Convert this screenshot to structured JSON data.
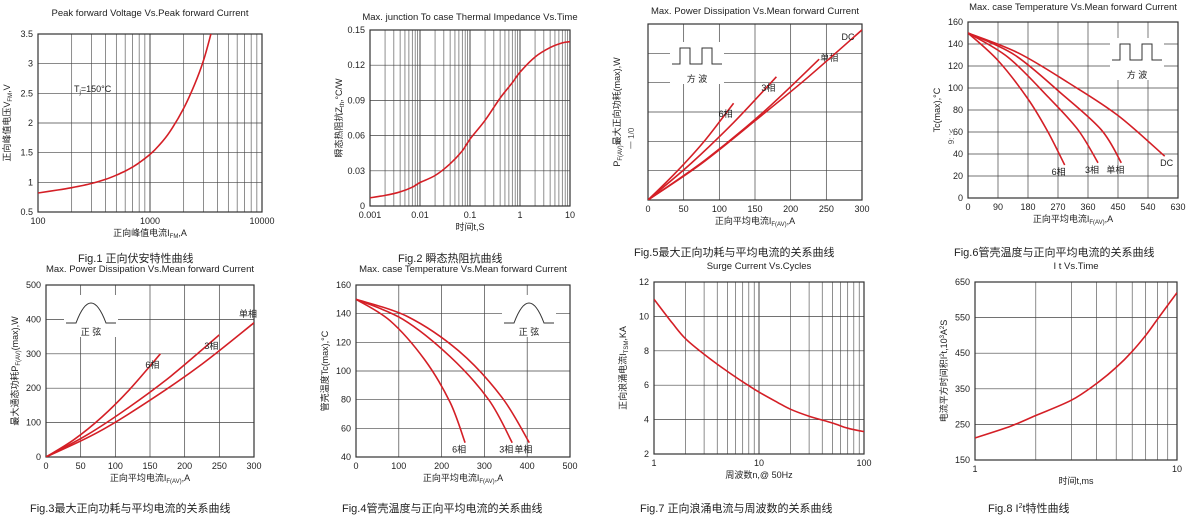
{
  "chart_data": [
    {
      "type": "line",
      "title": "Peak forward Voltage Vs.Peak forward Current",
      "caption": "Fig.1 正向伏安特性曲线",
      "xlabel": "正向峰值电流I",
      "xlabel_sub": "FM",
      "xlabel_end": ",A",
      "ylabel": "正向峰值电压V",
      "ylabel_sub": "FM",
      "ylabel_end": ",V",
      "x_scale": "log",
      "xlim": [
        100,
        10000
      ],
      "ylim": [
        0.5,
        3.5
      ],
      "x_ticks": [
        100,
        1000,
        10000
      ],
      "x_tick_labels": [
        "100",
        "1000",
        "10000"
      ],
      "y_ticks": [
        0.5,
        1,
        1.5,
        2,
        2.5,
        3,
        3.5
      ],
      "y_tick_labels": [
        "0.5",
        "1",
        "1.5",
        "2",
        "2.5",
        "3",
        "3.5"
      ],
      "grid": true,
      "annotation": "T",
      "annotation_sub": "j",
      "annotation_end": "=150°C",
      "series": [
        {
          "values_x": [
            100,
            150,
            200,
            300,
            400,
            500,
            600,
            700,
            800,
            1000,
            1200,
            1500,
            2000,
            2500,
            3000,
            3500
          ],
          "values_y": [
            0.82,
            0.87,
            0.91,
            0.98,
            1.05,
            1.12,
            1.19,
            1.26,
            1.33,
            1.47,
            1.62,
            1.85,
            2.25,
            2.65,
            3.05,
            3.5
          ]
        }
      ]
    },
    {
      "type": "line",
      "title": "Max. junction To case Thermal Impedance Vs.Time",
      "caption": "Fig.2 瞬态热阻抗曲线",
      "xlabel": "时间t,S",
      "ylabel": "瞬态热阻抗Z",
      "ylabel_sub": "th",
      "ylabel_end": ",°C/W",
      "x_scale": "log",
      "xlim": [
        0.001,
        10
      ],
      "ylim": [
        0,
        0.15
      ],
      "x_ticks": [
        0.001,
        0.01,
        0.1,
        1,
        10
      ],
      "x_tick_labels": [
        "0.001",
        "0.01",
        "0.1",
        "1",
        "10"
      ],
      "y_ticks": [
        0,
        0.03,
        0.06,
        0.09,
        0.12,
        0.15
      ],
      "y_tick_labels": [
        "0",
        "0.03",
        "0.06",
        "0.09",
        "0.12",
        "0.15"
      ],
      "grid": true,
      "series": [
        {
          "values_x": [
            0.001,
            0.002,
            0.004,
            0.007,
            0.01,
            0.02,
            0.04,
            0.07,
            0.1,
            0.2,
            0.4,
            0.7,
            1,
            2,
            4,
            7,
            10
          ],
          "values_y": [
            0.007,
            0.009,
            0.012,
            0.016,
            0.02,
            0.026,
            0.036,
            0.047,
            0.057,
            0.073,
            0.092,
            0.105,
            0.114,
            0.127,
            0.135,
            0.139,
            0.14
          ]
        }
      ]
    },
    {
      "type": "line",
      "title": "Max. Power Dissipation Vs.Mean forward Current",
      "caption": "Fig.5最大正向功耗与平均电流的关系曲线",
      "xlabel": "正向平均电流I",
      "xlabel_sub": "F(AV)",
      "xlabel_end": ",A",
      "ylabel": "P",
      "ylabel_sub": "F(AV)",
      "ylabel_end": "最大正向功耗(max),W",
      "ylabel_extra": "一 1/0",
      "xlim": [
        0,
        300
      ],
      "ylim": [
        0,
        300
      ],
      "x_ticks": [
        0,
        50,
        100,
        150,
        200,
        250,
        300
      ],
      "x_tick_labels": [
        "0",
        "50",
        "100",
        "150",
        "200",
        "250",
        "300"
      ],
      "y_ticks": [],
      "y_tick_labels": [],
      "grid": true,
      "inset_label": "方  波",
      "series": [
        {
          "name": "6相",
          "values_x": [
            0,
            40,
            80,
            120
          ],
          "values_y": [
            0,
            48,
            102,
            165
          ]
        },
        {
          "name": "3相",
          "values_x": [
            0,
            60,
            120,
            180
          ],
          "values_y": [
            0,
            62,
            132,
            210
          ]
        },
        {
          "name": "单相",
          "values_x": [
            0,
            80,
            160,
            240
          ],
          "values_y": [
            0,
            68,
            148,
            240
          ]
        },
        {
          "name": "DC",
          "values_x": [
            0,
            75,
            150,
            225,
            300
          ],
          "values_y": [
            0,
            62,
            135,
            210,
            290
          ]
        }
      ]
    },
    {
      "type": "line",
      "title": "Max. case Temperature Vs.Mean forward Current",
      "caption": "Fig.6管壳温度与正向平均电流的关系曲线",
      "xlabel": "正向平均电流I",
      "xlabel_sub": "F(AV)",
      "xlabel_end": ",A",
      "ylabel": "Tc(max),°C",
      "ylabel_extra": "9: ;<",
      "xlim": [
        0,
        630
      ],
      "ylim": [
        0,
        160
      ],
      "x_ticks": [
        0,
        90,
        180,
        270,
        360,
        450,
        540,
        630
      ],
      "x_tick_labels": [
        "0",
        "90",
        "180",
        "270",
        "360",
        "450",
        "540",
        "630"
      ],
      "y_ticks": [
        0,
        20,
        40,
        60,
        80,
        100,
        120,
        140,
        160
      ],
      "y_tick_labels": [
        "0",
        "20",
        "40",
        "60",
        "80",
        "100",
        "120",
        "140",
        "160"
      ],
      "grid": true,
      "inset_label": "方  波",
      "series": [
        {
          "name": "6相",
          "values_x": [
            0,
            90,
            180,
            240,
            290
          ],
          "values_y": [
            150,
            125,
            90,
            60,
            30
          ]
        },
        {
          "name": "3相",
          "values_x": [
            0,
            120,
            240,
            330,
            390
          ],
          "values_y": [
            150,
            128,
            92,
            62,
            32
          ]
        },
        {
          "name": "单相",
          "values_x": [
            0,
            140,
            280,
            400,
            460
          ],
          "values_y": [
            150,
            130,
            95,
            62,
            32
          ]
        },
        {
          "name": "DC",
          "values_x": [
            0,
            150,
            300,
            450,
            590
          ],
          "values_y": [
            150,
            132,
            105,
            75,
            38
          ]
        }
      ]
    },
    {
      "type": "line",
      "title": "Max. Power Dissipation Vs.Mean forward Current",
      "caption": "Fig.3最大正向功耗与平均电流的关系曲线",
      "xlabel": "正向平均电流I",
      "xlabel_sub": "F(AV)",
      "xlabel_end": ",A",
      "ylabel": "最大通态功耗P",
      "ylabel_sub": "F(AV)",
      "ylabel_end": "(max),W",
      "xlim": [
        0,
        300
      ],
      "ylim": [
        0,
        500
      ],
      "x_ticks": [
        0,
        50,
        100,
        150,
        200,
        250,
        300
      ],
      "x_tick_labels": [
        "0",
        "50",
        "100",
        "150",
        "200",
        "250",
        "300"
      ],
      "y_ticks": [
        0,
        100,
        200,
        300,
        400,
        500
      ],
      "y_tick_labels": [
        "0",
        "100",
        "200",
        "300",
        "400",
        "500"
      ],
      "grid": true,
      "inset_label": "正  弦",
      "series": [
        {
          "name": "6相",
          "values_x": [
            0,
            40,
            80,
            120,
            165
          ],
          "values_y": [
            0,
            50,
            115,
            195,
            300
          ]
        },
        {
          "name": "3相",
          "values_x": [
            0,
            60,
            120,
            180,
            250
          ],
          "values_y": [
            0,
            65,
            145,
            235,
            355
          ]
        },
        {
          "name": "单相",
          "values_x": [
            0,
            75,
            150,
            225,
            300
          ],
          "values_y": [
            0,
            72,
            165,
            270,
            390
          ]
        }
      ]
    },
    {
      "type": "line",
      "title": "Max. case Temperature Vs.Mean forward Current",
      "caption": "Fig.4管壳温度与正向平均电流的关系曲线",
      "xlabel": "正向平均电流I",
      "xlabel_sub": "F(AV)",
      "xlabel_end": ",A",
      "ylabel": "管壳温度Tc(max),°C",
      "xlim": [
        0,
        500
      ],
      "ylim": [
        40,
        160
      ],
      "x_ticks": [
        0,
        100,
        200,
        300,
        400,
        500
      ],
      "x_tick_labels": [
        "0",
        "100",
        "200",
        "300",
        "400",
        "500"
      ],
      "y_ticks": [
        40,
        60,
        80,
        100,
        120,
        140,
        160
      ],
      "y_tick_labels": [
        "40",
        "60",
        "80",
        "100",
        "120",
        "140",
        "160"
      ],
      "grid": true,
      "inset_label": "正  弦",
      "series": [
        {
          "name": "6相",
          "values_x": [
            0,
            80,
            160,
            220,
            255
          ],
          "values_y": [
            150,
            135,
            108,
            78,
            50
          ]
        },
        {
          "name": "3相",
          "values_x": [
            0,
            110,
            220,
            310,
            365
          ],
          "values_y": [
            150,
            136,
            110,
            80,
            50
          ]
        },
        {
          "name": "单相",
          "values_x": [
            0,
            120,
            240,
            340,
            405
          ],
          "values_y": [
            150,
            138,
            114,
            82,
            50
          ]
        }
      ]
    },
    {
      "type": "line",
      "title": "Surge Current Vs.Cycles",
      "caption": "Fig.7 正向浪涌电流与周波数的关系曲线",
      "xlabel": "周波数n,@ 50Hz",
      "ylabel": "正向浪涌电流I",
      "ylabel_sub": "TSM",
      "ylabel_end": ",KA",
      "x_scale": "log",
      "xlim": [
        1,
        100
      ],
      "ylim": [
        2,
        12
      ],
      "x_ticks": [
        1,
        10,
        100
      ],
      "x_tick_labels": [
        "1",
        "10",
        "100"
      ],
      "y_ticks": [
        2,
        4,
        6,
        8,
        10,
        12
      ],
      "y_tick_labels": [
        "2",
        "4",
        "6",
        "8",
        "10",
        "12"
      ],
      "grid": true,
      "series": [
        {
          "values_x": [
            1,
            1.5,
            2,
            3,
            5,
            7,
            10,
            15,
            20,
            30,
            50,
            70,
            100
          ],
          "values_y": [
            11.0,
            9.6,
            8.7,
            7.8,
            6.8,
            6.2,
            5.6,
            5.0,
            4.6,
            4.2,
            3.8,
            3.5,
            3.3
          ]
        }
      ]
    },
    {
      "type": "line",
      "title": "I t Vs.Time",
      "caption": "Fig.8 I",
      "caption_sup": "2",
      "caption_end": "t特性曲线",
      "xlabel": "时间t,ms",
      "ylabel": "电流平方时间积I",
      "ylabel_sup": "2",
      "ylabel_mid": "t,10",
      "ylabel_sup2": "3",
      "ylabel_end": "A",
      "ylabel_sup3": "2",
      "ylabel_tail": "S",
      "x_scale": "log",
      "xlim": [
        1,
        10
      ],
      "ylim": [
        150,
        650
      ],
      "x_ticks": [
        1,
        10
      ],
      "x_tick_labels": [
        "1",
        "10"
      ],
      "y_ticks": [
        150,
        250,
        350,
        450,
        550,
        650
      ],
      "y_tick_labels": [
        "150",
        "250",
        "350",
        "450",
        "550",
        "650"
      ],
      "grid": true,
      "series": [
        {
          "values_x": [
            1,
            1.5,
            2,
            3,
            4,
            5,
            6,
            7,
            8,
            9,
            10
          ],
          "values_y": [
            212,
            245,
            275,
            318,
            365,
            410,
            455,
            500,
            545,
            585,
            620
          ]
        }
      ]
    }
  ],
  "colors": {
    "curve": "#d41f26",
    "axis": "#333333",
    "grid": "#444444",
    "text": "#222222"
  }
}
